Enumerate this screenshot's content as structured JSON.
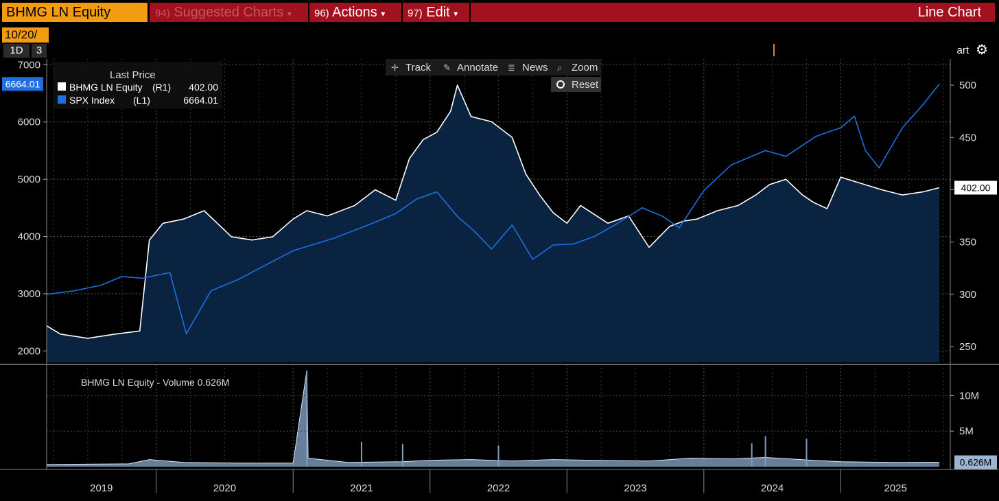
{
  "header": {
    "ticker": "BHMG LN Equity",
    "menu": [
      {
        "num": "94)",
        "label": "Suggested Charts",
        "dim": true
      },
      {
        "num": "96)",
        "label": "Actions",
        "dim": false
      },
      {
        "num": "97)",
        "label": "Edit",
        "dim": false
      }
    ],
    "chart_type_label": "Line Chart",
    "date_value": "10/20/",
    "range_buttons": [
      "1D",
      "3"
    ],
    "chart_button_label": "art"
  },
  "toolbar": {
    "track": "Track",
    "annotate": "Annotate",
    "news": "News",
    "zoom": "Zoom",
    "reset": "Reset"
  },
  "colors": {
    "bhmg_line": "#ffffff",
    "spx_line": "#1f6fe0",
    "area_fill": "#0a2340",
    "volume_fill": "#7f9dbf",
    "header_red": "#a3101e",
    "header_orange": "#f39c12"
  },
  "chart_data": [
    {
      "type": "line",
      "legend": {
        "title": "Last Price",
        "entries": [
          {
            "name": "BHMG LN Equity",
            "axis": "(R1)",
            "last": "402.00",
            "color": "#ffffff"
          },
          {
            "name": "SPX Index",
            "axis": "(L1)",
            "last": "6664.01",
            "color": "#1f6fe0"
          }
        ]
      },
      "left_axis": {
        "ticks": [
          2000,
          3000,
          4000,
          5000,
          6000,
          7000
        ],
        "ylim": [
          1800,
          7100
        ]
      },
      "right_axis": {
        "ticks": [
          250,
          300,
          350,
          400,
          450,
          500
        ],
        "ylim": [
          235,
          525
        ]
      },
      "x_axis": {
        "labels": [
          "2019",
          "2020",
          "2021",
          "2022",
          "2023",
          "2024",
          "2025"
        ],
        "xlim": [
          2019.2,
          2025.8
        ]
      },
      "left_last_label": "6664.01",
      "right_last_label": "402.00",
      "series": [
        {
          "name": "SPX Index",
          "axis": "left",
          "x": [
            2019.2,
            2019.4,
            2019.6,
            2019.75,
            2019.9,
            2020.1,
            2020.22,
            2020.4,
            2020.6,
            2020.8,
            2021.0,
            2021.3,
            2021.55,
            2021.75,
            2021.9,
            2022.05,
            2022.2,
            2022.32,
            2022.45,
            2022.6,
            2022.75,
            2022.9,
            2023.05,
            2023.2,
            2023.35,
            2023.55,
            2023.7,
            2023.82,
            2024.0,
            2024.2,
            2024.45,
            2024.6,
            2024.82,
            2025.0,
            2025.1,
            2025.18,
            2025.28,
            2025.45,
            2025.6,
            2025.72
          ],
          "values": [
            2990,
            3050,
            3150,
            3300,
            3270,
            3370,
            2300,
            3050,
            3250,
            3500,
            3750,
            3970,
            4200,
            4400,
            4650,
            4780,
            4350,
            4100,
            3780,
            4200,
            3600,
            3850,
            3870,
            4000,
            4200,
            4500,
            4350,
            4150,
            4800,
            5250,
            5500,
            5400,
            5750,
            5900,
            6100,
            5500,
            5200,
            5900,
            6300,
            6664
          ]
        },
        {
          "name": "BHMG LN Equity",
          "axis": "right",
          "x": [
            2019.2,
            2019.3,
            2019.5,
            2019.7,
            2019.88,
            2019.95,
            2020.05,
            2020.2,
            2020.35,
            2020.55,
            2020.7,
            2020.85,
            2021.0,
            2021.1,
            2021.25,
            2021.45,
            2021.6,
            2021.75,
            2021.85,
            2021.95,
            2022.05,
            2022.15,
            2022.2,
            2022.3,
            2022.45,
            2022.6,
            2022.7,
            2022.8,
            2022.9,
            2023.0,
            2023.1,
            2023.3,
            2023.45,
            2023.6,
            2023.75,
            2023.85,
            2023.95,
            2024.1,
            2024.25,
            2024.38,
            2024.48,
            2024.6,
            2024.72,
            2024.8,
            2024.9,
            2025.0,
            2025.15,
            2025.3,
            2025.45,
            2025.6,
            2025.72
          ],
          "values": [
            270,
            262,
            258,
            262,
            265,
            352,
            368,
            372,
            380,
            355,
            352,
            355,
            372,
            380,
            375,
            385,
            400,
            390,
            430,
            448,
            455,
            475,
            500,
            470,
            465,
            450,
            415,
            395,
            378,
            368,
            385,
            368,
            375,
            345,
            365,
            370,
            372,
            380,
            385,
            395,
            405,
            410,
            395,
            388,
            382,
            412,
            406,
            400,
            395,
            398,
            402
          ]
        }
      ]
    },
    {
      "type": "area",
      "title": "BHMG LN Equity - Volume 0.626M",
      "y_ticks": [
        "5M",
        "10M"
      ],
      "ylim": [
        0,
        14
      ],
      "last_label": "0.626M",
      "series": [
        {
          "name": "BHMG LN Equity - Volume",
          "unit": "M",
          "x": [
            2019.2,
            2019.8,
            2019.95,
            2020.2,
            2020.6,
            2021.0,
            2021.1,
            2021.11,
            2021.4,
            2021.8,
            2022.0,
            2022.3,
            2022.6,
            2022.9,
            2023.2,
            2023.6,
            2023.9,
            2024.2,
            2024.45,
            2024.8,
            2025.0,
            2025.4,
            2025.72
          ],
          "values": [
            0.3,
            0.4,
            1.0,
            0.6,
            0.5,
            0.5,
            13.5,
            1.2,
            0.6,
            0.7,
            0.9,
            1.0,
            0.8,
            1.0,
            0.9,
            0.8,
            1.2,
            1.1,
            1.3,
            0.9,
            0.7,
            0.6,
            0.626
          ]
        }
      ],
      "spikes": [
        {
          "x": 2021.1,
          "value": 13.5
        },
        {
          "x": 2021.5,
          "value": 3.5
        },
        {
          "x": 2021.8,
          "value": 3.2
        },
        {
          "x": 2022.5,
          "value": 3.0
        },
        {
          "x": 2024.35,
          "value": 3.3
        },
        {
          "x": 2024.45,
          "value": 4.3
        },
        {
          "x": 2024.75,
          "value": 3.9
        }
      ]
    }
  ]
}
